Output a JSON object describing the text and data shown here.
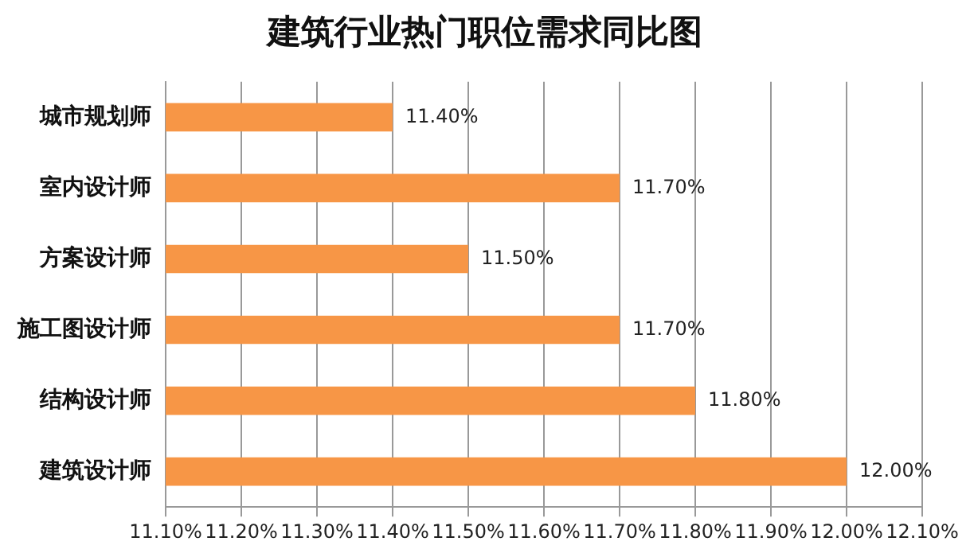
{
  "chart_data": {
    "type": "bar",
    "orientation": "horizontal",
    "title": "建筑行业热门职位需求同比图",
    "categories": [
      "城市规划师",
      "室内设计师",
      "方案设计师",
      "施工图设计师",
      "结构设计师",
      "建筑设计师"
    ],
    "values": [
      11.4,
      11.7,
      11.5,
      11.7,
      11.8,
      12.0
    ],
    "value_labels": [
      "11.40%",
      "11.70%",
      "11.50%",
      "11.70%",
      "11.80%",
      "12.00%"
    ],
    "color": "#f79646",
    "xlim": [
      11.1,
      12.1
    ],
    "xticks": [
      {
        "value": 11.1,
        "label": "11.10%"
      },
      {
        "value": 11.2,
        "label": "11.20%"
      },
      {
        "value": 11.3,
        "label": "11.30%"
      },
      {
        "value": 11.4,
        "label": "11.40%"
      },
      {
        "value": 11.5,
        "label": "11.50%"
      },
      {
        "value": 11.6,
        "label": "11.60%"
      },
      {
        "value": 11.7,
        "label": "11.70%"
      },
      {
        "value": 11.8,
        "label": "11.80%"
      },
      {
        "value": 11.9,
        "label": "11.90%"
      },
      {
        "value": 12.0,
        "label": "12.00%"
      },
      {
        "value": 12.1,
        "label": "12.10%"
      }
    ],
    "grid": "x",
    "legend": false
  }
}
